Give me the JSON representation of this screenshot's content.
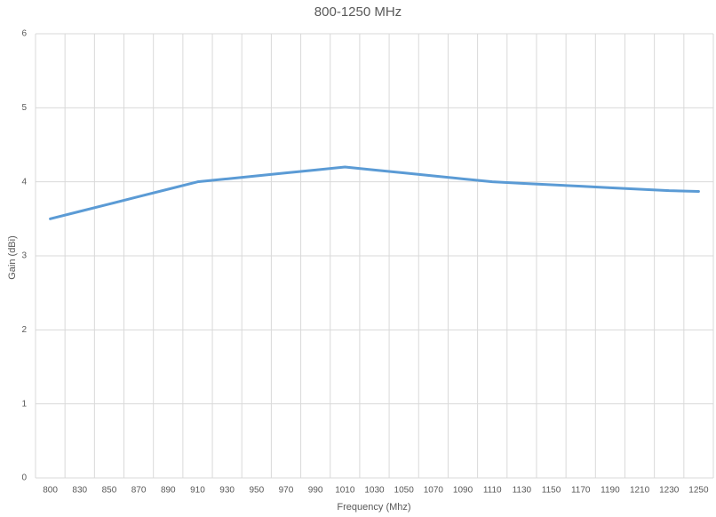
{
  "chart_data": {
    "type": "line",
    "title": "800-1250 MHz",
    "x_label": "Frequency (Mhz)",
    "y_label": "Gain (dBi)",
    "categories": [
      "800",
      "830",
      "850",
      "870",
      "890",
      "910",
      "930",
      "950",
      "970",
      "990",
      "1010",
      "1030",
      "1050",
      "1070",
      "1090",
      "1110",
      "1130",
      "1150",
      "1170",
      "1190",
      "1210",
      "1230",
      "1250"
    ],
    "series": [
      {
        "name": "Gain",
        "color": "#5b9bd5",
        "values": [
          3.5,
          3.6,
          3.7,
          3.8,
          3.9,
          4.0,
          4.04,
          4.08,
          4.12,
          4.16,
          4.2,
          4.16,
          4.12,
          4.08,
          4.04,
          4.0,
          3.98,
          3.96,
          3.94,
          3.92,
          3.9,
          3.88,
          3.87
        ]
      }
    ],
    "ylim": [
      0,
      6
    ],
    "yticks": [
      0,
      1,
      2,
      3,
      4,
      5,
      6
    ],
    "grid": true
  }
}
